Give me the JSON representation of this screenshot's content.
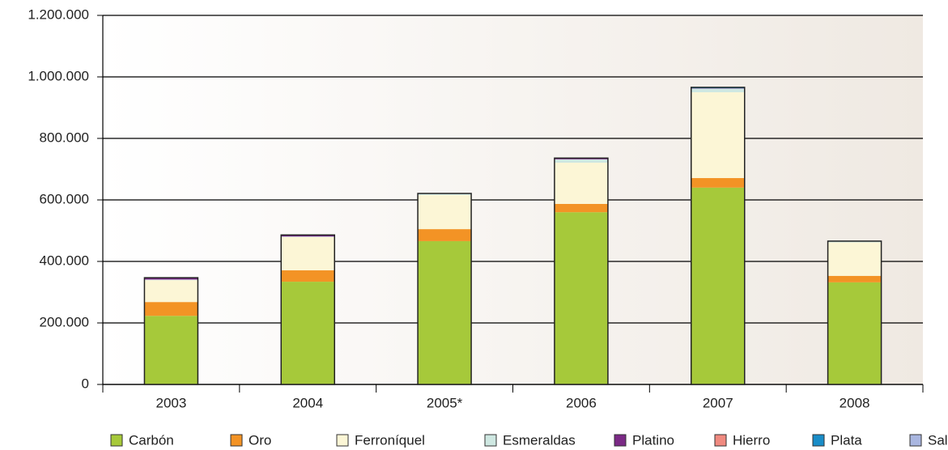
{
  "chart_data": {
    "type": "stacked_bar",
    "categories": [
      "2003",
      "2004",
      "2005*",
      "2006",
      "2007",
      "2008"
    ],
    "series": [
      {
        "name": "Carbón",
        "color": "#a6c93a",
        "values": [
          223000,
          334000,
          466000,
          560000,
          640000,
          332000
        ]
      },
      {
        "name": "Oro",
        "color": "#f39325",
        "values": [
          45000,
          37000,
          39000,
          27000,
          31000,
          21000
        ]
      },
      {
        "name": "Ferroníquel",
        "color": "#fcf6d6",
        "values": [
          71000,
          108000,
          111000,
          134000,
          279000,
          109000
        ]
      },
      {
        "name": "Esmeraldas",
        "color": "#cfe8e2",
        "values": [
          2000,
          2000,
          4000,
          11000,
          12000,
          3000
        ]
      },
      {
        "name": "Platino",
        "color": "#7b2a86",
        "values": [
          5000,
          4000,
          1000,
          3000,
          1000,
          1000
        ]
      },
      {
        "name": "Hierro",
        "color": "#f08a80",
        "values": [
          0,
          1000,
          0,
          1000,
          0,
          0
        ]
      },
      {
        "name": "Plata",
        "color": "#1a8dc8",
        "values": [
          0,
          0,
          0,
          0,
          2000,
          0
        ]
      },
      {
        "name": "Sal",
        "color": "#a9b6e0",
        "values": [
          1000,
          0,
          0,
          0,
          1000,
          0
        ]
      }
    ],
    "ylim": [
      0,
      1200000
    ],
    "yticks": [
      0,
      {
        "value": 200000,
        "label": "200.000"
      },
      {
        "value": 400000,
        "label": "400.000"
      },
      {
        "value": 600000,
        "label": "600.000"
      },
      {
        "value": 800000,
        "label": "800.000"
      },
      {
        "value": 1000000,
        "label": "1.000.000"
      },
      {
        "value": 1200000,
        "label": "1.200.000"
      }
    ],
    "grid": true
  }
}
